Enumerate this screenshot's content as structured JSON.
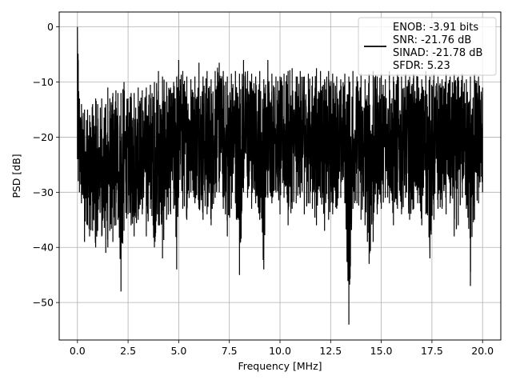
{
  "chart_data": {
    "type": "line",
    "xlabel": "Frequency [MHz]",
    "ylabel": "PSD [dB]",
    "xlim": [
      -0.9,
      20.9
    ],
    "ylim": [
      -56.8,
      2.7
    ],
    "xticks": [
      0.0,
      2.5,
      5.0,
      7.5,
      10.0,
      12.5,
      15.0,
      17.5,
      20.0
    ],
    "xtick_labels": [
      "0.0",
      "2.5",
      "5.0",
      "7.5",
      "10.0",
      "12.5",
      "15.0",
      "17.5",
      "20.0"
    ],
    "yticks": [
      0,
      -10,
      -20,
      -30,
      -40,
      -50
    ],
    "ytick_labels": [
      "0",
      "−10",
      "−20",
      "−30",
      "−40",
      "−50"
    ],
    "grid": true,
    "legend_position": "top-right",
    "series": [
      {
        "name": "ENOB: -3.91 bits\nSNR: -21.76 dB\nSINAD: -21.78 dB\nSFDR: 5.23",
        "color": "#000000",
        "x": [
          0.0,
          0.04,
          0.1,
          0.2,
          0.35,
          0.5,
          0.6,
          0.75,
          0.9,
          1.0,
          1.2,
          1.4,
          1.5,
          1.6,
          1.75,
          1.9,
          2.0,
          2.15,
          2.3,
          2.5,
          2.65,
          2.8,
          3.0,
          3.2,
          3.4,
          3.6,
          3.8,
          4.0,
          4.2,
          4.4,
          4.6,
          4.75,
          4.9,
          5.0,
          5.2,
          5.4,
          5.6,
          5.8,
          6.0,
          6.2,
          6.4,
          6.6,
          6.8,
          7.0,
          7.2,
          7.4,
          7.6,
          7.8,
          8.0,
          8.2,
          8.4,
          8.6,
          8.8,
          9.0,
          9.2,
          9.4,
          9.6,
          9.8,
          10.0,
          10.2,
          10.4,
          10.6,
          10.8,
          11.0,
          11.2,
          11.4,
          11.6,
          11.8,
          12.0,
          12.2,
          12.4,
          12.6,
          12.8,
          13.0,
          13.2,
          13.4,
          13.6,
          13.8,
          14.0,
          14.2,
          14.4,
          14.6,
          14.8,
          15.0,
          15.2,
          15.4,
          15.6,
          15.8,
          16.0,
          16.2,
          16.4,
          16.6,
          16.8,
          17.0,
          17.2,
          17.4,
          17.6,
          17.8,
          18.0,
          18.2,
          18.4,
          18.6,
          18.8,
          19.0,
          19.2,
          19.4,
          19.6,
          19.8,
          20.0
        ],
        "y_high": [
          0.0,
          -6.0,
          -13.0,
          -14.0,
          -15.0,
          -15.0,
          -16.0,
          -14.0,
          -13.0,
          -14.0,
          -13.0,
          -14.0,
          -11.0,
          -13.0,
          -12.0,
          -11.5,
          -12.0,
          -12.0,
          -10.0,
          -13.0,
          -12.0,
          -12.0,
          -11.0,
          -11.5,
          -11.0,
          -10.5,
          -10.0,
          -8.0,
          -9.0,
          -10.0,
          -11.0,
          -10.0,
          -9.0,
          -6.0,
          -8.0,
          -9.0,
          -9.5,
          -9.0,
          -6.5,
          -9.0,
          -8.0,
          -9.5,
          -8.0,
          -6.5,
          -8.0,
          -9.0,
          -8.5,
          -8.0,
          -8.5,
          -6.0,
          -8.0,
          -8.5,
          -9.0,
          -8.0,
          -9.5,
          -6.0,
          -8.5,
          -9.0,
          -9.0,
          -8.5,
          -8.0,
          -7.5,
          -9.0,
          -8.0,
          -9.0,
          -8.5,
          -9.0,
          -7.5,
          -8.0,
          -9.5,
          -8.0,
          -8.5,
          -9.0,
          -9.5,
          -8.5,
          -9.0,
          -8.0,
          -9.0,
          -8.5,
          -9.5,
          -8.5,
          -8.0,
          -9.0,
          -8.5,
          -9.5,
          -8.0,
          -9.0,
          -8.5,
          -9.0,
          -8.5,
          -9.0,
          -8.5,
          -9.0,
          -9.5,
          -8.0,
          -9.0,
          -8.5,
          -9.0,
          -9.5,
          -8.5,
          -9.0,
          -8.5,
          -9.0,
          -8.5,
          -9.5,
          -9.0,
          -8.5,
          -9.0,
          -11.0
        ],
        "y_low": [
          -24.0,
          -28.0,
          -30.0,
          -32.0,
          -39.0,
          -36.0,
          -38.0,
          -37.0,
          -40.0,
          -37.0,
          -38.0,
          -41.0,
          -40.0,
          -37.0,
          -39.0,
          -36.0,
          -35.0,
          -48.0,
          -37.0,
          -34.0,
          -36.0,
          -38.0,
          -35.0,
          -34.0,
          -38.0,
          -33.0,
          -40.0,
          -36.0,
          -42.0,
          -35.0,
          -34.0,
          -33.0,
          -44.0,
          -31.0,
          -33.0,
          -35.0,
          -30.0,
          -32.0,
          -33.0,
          -35.0,
          -34.0,
          -36.0,
          -31.0,
          -30.0,
          -33.0,
          -38.0,
          -33.0,
          -32.0,
          -45.0,
          -30.0,
          -31.0,
          -33.0,
          -32.0,
          -35.0,
          -44.0,
          -31.0,
          -32.0,
          -30.0,
          -34.0,
          -31.0,
          -36.0,
          -33.0,
          -32.0,
          -31.0,
          -34.0,
          -32.0,
          -33.0,
          -36.0,
          -31.0,
          -37.0,
          -35.0,
          -34.0,
          -33.0,
          -31.0,
          -32.0,
          -54.0,
          -33.0,
          -32.0,
          -35.0,
          -36.0,
          -43.0,
          -39.0,
          -34.0,
          -33.0,
          -31.0,
          -32.0,
          -36.0,
          -33.0,
          -34.0,
          -31.0,
          -35.0,
          -33.0,
          -32.0,
          -36.0,
          -34.0,
          -42.0,
          -35.0,
          -33.0,
          -33.0,
          -34.0,
          -32.0,
          -38.0,
          -36.0,
          -31.0,
          -33.0,
          -47.0,
          -35.0,
          -32.0,
          -30.0
        ]
      }
    ]
  }
}
